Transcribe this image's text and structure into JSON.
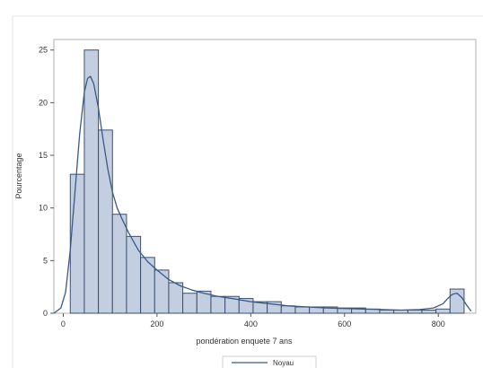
{
  "chart_data": {
    "type": "bar",
    "xlabel": "pondération enquete 7 ans",
    "ylabel": "Pourcentage",
    "xlim": [
      -20,
      880
    ],
    "ylim": [
      0,
      26
    ],
    "x_ticks": [
      0,
      200,
      400,
      600,
      800
    ],
    "y_ticks": [
      0,
      5,
      10,
      15,
      20,
      25
    ],
    "bin_width": 30,
    "bins": [
      {
        "start": 15,
        "end": 45,
        "value": 13.2
      },
      {
        "start": 45,
        "end": 75,
        "value": 25.0
      },
      {
        "start": 75,
        "end": 105,
        "value": 17.4
      },
      {
        "start": 105,
        "end": 135,
        "value": 9.4
      },
      {
        "start": 135,
        "end": 165,
        "value": 7.3
      },
      {
        "start": 165,
        "end": 195,
        "value": 5.3
      },
      {
        "start": 195,
        "end": 225,
        "value": 4.1
      },
      {
        "start": 225,
        "end": 255,
        "value": 2.9
      },
      {
        "start": 255,
        "end": 285,
        "value": 1.9
      },
      {
        "start": 285,
        "end": 315,
        "value": 2.1
      },
      {
        "start": 315,
        "end": 345,
        "value": 1.6
      },
      {
        "start": 345,
        "end": 375,
        "value": 1.6
      },
      {
        "start": 375,
        "end": 405,
        "value": 1.4
      },
      {
        "start": 405,
        "end": 435,
        "value": 1.1
      },
      {
        "start": 435,
        "end": 465,
        "value": 1.1
      },
      {
        "start": 465,
        "end": 495,
        "value": 0.7
      },
      {
        "start": 495,
        "end": 525,
        "value": 0.6
      },
      {
        "start": 525,
        "end": 555,
        "value": 0.6
      },
      {
        "start": 555,
        "end": 585,
        "value": 0.6
      },
      {
        "start": 585,
        "end": 615,
        "value": 0.5
      },
      {
        "start": 615,
        "end": 645,
        "value": 0.5
      },
      {
        "start": 645,
        "end": 675,
        "value": 0.4
      },
      {
        "start": 675,
        "end": 705,
        "value": 0.3
      },
      {
        "start": 705,
        "end": 735,
        "value": 0.3
      },
      {
        "start": 735,
        "end": 765,
        "value": 0.3
      },
      {
        "start": 765,
        "end": 795,
        "value": 0.3
      },
      {
        "start": 795,
        "end": 825,
        "value": 0.4
      },
      {
        "start": 825,
        "end": 855,
        "value": 2.3
      }
    ],
    "series": [
      {
        "name": "Noyau",
        "type": "line",
        "x": [
          -20,
          -5,
          5,
          15,
          25,
          35,
          45,
          52,
          58,
          65,
          75,
          85,
          95,
          105,
          115,
          125,
          140,
          160,
          180,
          200,
          225,
          250,
          275,
          300,
          330,
          360,
          400,
          440,
          480,
          520,
          560,
          600,
          640,
          680,
          720,
          760,
          790,
          810,
          820,
          830,
          840,
          850,
          860,
          870
        ],
        "y": [
          0.0,
          0.5,
          2.0,
          6.0,
          11.5,
          17.0,
          21.0,
          22.3,
          22.5,
          21.8,
          19.5,
          16.5,
          13.7,
          11.5,
          10.0,
          9.0,
          7.6,
          6.0,
          4.9,
          4.1,
          3.2,
          2.6,
          2.2,
          1.9,
          1.6,
          1.4,
          1.1,
          0.9,
          0.7,
          0.6,
          0.5,
          0.45,
          0.4,
          0.35,
          0.3,
          0.35,
          0.5,
          0.9,
          1.4,
          1.8,
          1.9,
          1.5,
          0.8,
          0.2
        ]
      }
    ],
    "bar_color": "#c3cfe0",
    "bar_edge_color": "#3c4f6f",
    "line_color": "#3a5a85",
    "grid": false,
    "legend_position": "bottom-center"
  }
}
